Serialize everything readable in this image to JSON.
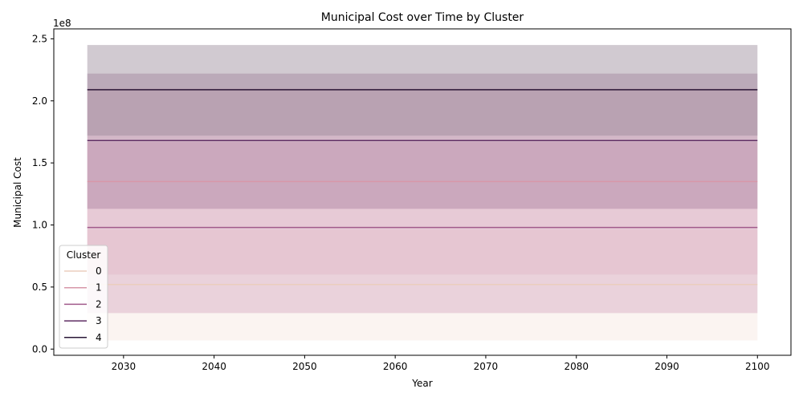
{
  "chart_data": {
    "type": "line",
    "title": "Municipal Cost over Time by Cluster",
    "xlabel": "Year",
    "ylabel": "Municipal Cost",
    "y_multiplier_label": "1e8",
    "x_range": [
      2026,
      2100
    ],
    "xlim": [
      2022.3,
      2103.7
    ],
    "ylim": [
      -5000000,
      258000000
    ],
    "x_ticks": [
      2030,
      2040,
      2050,
      2060,
      2070,
      2080,
      2090,
      2100
    ],
    "x_tick_labels": [
      "2030",
      "2040",
      "2050",
      "2060",
      "2070",
      "2080",
      "2090",
      "2100"
    ],
    "y_ticks": [
      0,
      50000000,
      100000000,
      150000000,
      200000000,
      250000000
    ],
    "y_tick_labels": [
      "0.0",
      "0.5",
      "1.0",
      "1.5",
      "2.0",
      "2.5"
    ],
    "grid": false,
    "legend": {
      "title": "Cluster",
      "placement": "lower-left"
    },
    "series": [
      {
        "name": "0",
        "value": 52000000,
        "band": [
          7000000,
          96000000
        ],
        "color": "#ebcdbd",
        "band_color": "#f7e6e0"
      },
      {
        "name": "1",
        "value": 135000000,
        "band": [
          60000000,
          210000000
        ],
        "color": "#d797a8",
        "band_color": "#ebc5cd"
      },
      {
        "name": "2",
        "value": 98000000,
        "band": [
          29000000,
          167000000
        ],
        "color": "#a05a8b",
        "band_color": "#d4a8c0"
      },
      {
        "name": "3",
        "value": 168000000,
        "band": [
          113000000,
          222000000
        ],
        "color": "#5f2f64",
        "band_color": "#a87fa0"
      },
      {
        "name": "4",
        "value": 209000000,
        "band": [
          172000000,
          245000000
        ],
        "color": "#2a1736",
        "band_color": "#9a8a9a"
      }
    ]
  }
}
